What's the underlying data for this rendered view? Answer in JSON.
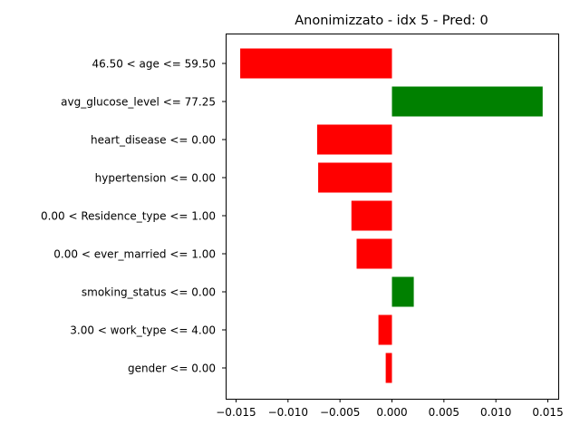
{
  "chart_data": {
    "type": "bar",
    "orientation": "horizontal",
    "title": "Anonimizzato - idx 5 - Pred: 0",
    "xlabel": "",
    "ylabel": "",
    "xlim": [
      -0.016,
      0.016
    ],
    "xticks": [
      -0.015,
      -0.01,
      -0.005,
      0.0,
      0.005,
      0.01,
      0.015
    ],
    "xtick_labels": [
      "−0.015",
      "−0.010",
      "−0.005",
      "0.000",
      "0.005",
      "0.010",
      "0.015"
    ],
    "grid": false,
    "legend": "none",
    "categories": [
      "46.50 < age <= 59.50",
      "avg_glucose_level <= 77.25",
      "heart_disease <= 0.00",
      "hypertension <= 0.00",
      "0.00 < Residence_type <= 1.00",
      "0.00 < ever_married <= 1.00",
      "smoking_status <= 0.00",
      "3.00 < work_type <= 4.00",
      "gender <= 0.00"
    ],
    "values": [
      -0.0146,
      0.0145,
      -0.0072,
      -0.0071,
      -0.0039,
      -0.0034,
      0.0021,
      -0.0013,
      -0.0006
    ],
    "colors": {
      "negative": "#ff0000",
      "positive": "#008000"
    }
  }
}
